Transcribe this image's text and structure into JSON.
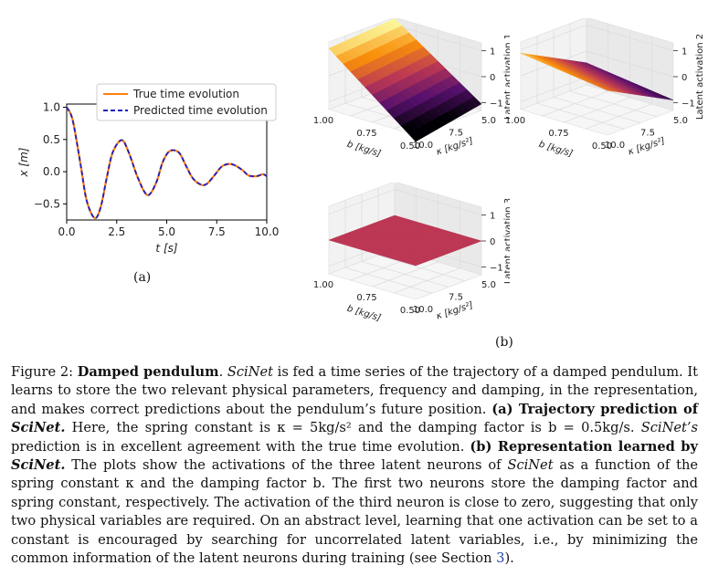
{
  "chart_data": [
    {
      "type": "line",
      "panel": "(a)",
      "xlabel": "t [s]",
      "ylabel": "x [m]",
      "xlim": [
        0,
        10
      ],
      "ylim": [
        -0.75,
        1.05
      ],
      "xticks": [
        "0.0",
        "2.5",
        "5.0",
        "7.5",
        "10.0"
      ],
      "yticks": [
        "1.0",
        "0.5",
        "0.0",
        "−0.5"
      ],
      "legend_position": "top-right",
      "series": [
        {
          "name": "True time evolution",
          "style": "solid",
          "color": "#ff7f0e",
          "x": [
            0.0,
            0.3,
            0.7,
            1.0,
            1.4,
            1.7,
            2.0,
            2.3,
            2.75,
            3.1,
            3.5,
            3.9,
            4.15,
            4.5,
            4.8,
            5.15,
            5.6,
            5.95,
            6.3,
            6.7,
            7.0,
            7.4,
            7.75,
            8.1,
            8.4,
            8.8,
            9.1,
            9.5,
            9.8,
            10.0
          ],
          "y": [
            1.0,
            0.8,
            0.1,
            -0.45,
            -0.72,
            -0.55,
            -0.1,
            0.3,
            0.49,
            0.3,
            -0.05,
            -0.32,
            -0.35,
            -0.15,
            0.15,
            0.32,
            0.3,
            0.1,
            -0.1,
            -0.2,
            -0.19,
            -0.05,
            0.08,
            0.12,
            0.1,
            0.02,
            -0.06,
            -0.07,
            -0.04,
            -0.07
          ]
        },
        {
          "name": "Predicted time evolution",
          "style": "dashed",
          "color": "#1f1fbf",
          "x": [
            0.0,
            0.3,
            0.7,
            1.0,
            1.4,
            1.7,
            2.0,
            2.3,
            2.75,
            3.1,
            3.5,
            3.9,
            4.15,
            4.5,
            4.8,
            5.15,
            5.6,
            5.95,
            6.3,
            6.7,
            7.0,
            7.4,
            7.75,
            8.1,
            8.4,
            8.8,
            9.1,
            9.5,
            9.8,
            10.0
          ],
          "y": [
            1.0,
            0.8,
            0.1,
            -0.45,
            -0.72,
            -0.55,
            -0.1,
            0.3,
            0.49,
            0.3,
            -0.05,
            -0.32,
            -0.35,
            -0.15,
            0.15,
            0.32,
            0.3,
            0.1,
            -0.1,
            -0.2,
            -0.19,
            -0.05,
            0.08,
            0.12,
            0.1,
            0.02,
            -0.06,
            -0.07,
            -0.04,
            -0.07
          ]
        }
      ]
    },
    {
      "type": "surface3d",
      "panel": "(b)",
      "title": "",
      "zlabel": "Latent activation 1",
      "blabel": "b [kg/s]",
      "klabel": "κ [kg/s²]",
      "bticks": [
        "1.00",
        "0.75",
        "0.50"
      ],
      "kticks": [
        "10.0",
        "7.5",
        "5.0"
      ],
      "zticks": [
        "1",
        "0",
        "−1"
      ]
    },
    {
      "type": "surface3d",
      "panel": "(b)",
      "zlabel": "Latent activation 2",
      "blabel": "b [kg/s]",
      "klabel": "κ [kg/s²]",
      "bticks": [
        "1.00",
        "0.75",
        "0.50"
      ],
      "kticks": [
        "10.0",
        "7.5",
        "5.0"
      ],
      "zticks": [
        "1",
        "0",
        "−1"
      ]
    },
    {
      "type": "surface3d",
      "panel": "(b)",
      "zlabel": "Latent activation 3",
      "blabel": "b [kg/s]",
      "klabel": "κ [kg/s²]",
      "bticks": [
        "1.00",
        "0.75",
        "0.50"
      ],
      "kticks": [
        "10.0",
        "7.5",
        "5.0"
      ],
      "zticks": [
        "1",
        "0",
        "−1"
      ]
    }
  ],
  "labels": {
    "a": "(a)",
    "b": "(b)"
  },
  "caption": {
    "fig": "Figure 2: ",
    "title": "Damped pendulum",
    "p1": ". ",
    "scinet1": "SciNet",
    "p2": " is fed a time series of the trajectory of a damped pendulum. It learns to store the two relevant physical parameters, frequency and damping, in the representation, and makes correct predictions about the pendulum’s future position. ",
    "a_head": "(a) Trajectory prediction of ",
    "a_scinet": "SciNet.",
    "p3": " Here, the spring constant is κ = 5kg/s² and the damping factor is b = 0.5kg/s. ",
    "scinet2": "SciNet’s",
    "p4": " prediction is in excellent agreement with the true time evolution. ",
    "b_head": "(b) Representation learned by ",
    "b_scinet": "SciNet.",
    "p5": " The plots show the activations of the three latent neurons of ",
    "scinet3": "SciNet",
    "p6": " as a function of the spring constant κ and the damping factor b. The first two neurons store the damping factor and spring constant, respectively. The activation of the third neuron is close to zero, suggesting that only two physical variables are required. On an abstract level, learning that one activation can be set to a constant is encouraged by searching for uncorrelated latent variables, i.e., by minimizing the common information of the latent neurons during training (see Section ",
    "section": "3",
    "p7": ")."
  }
}
